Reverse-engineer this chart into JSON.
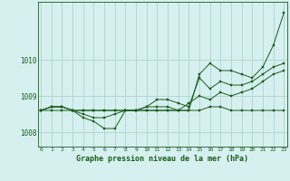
{
  "title": "Graphe pression niveau de la mer (hPa)",
  "bg_color": "#d6f0f0",
  "grid_color": "#aacccc",
  "line_color": "#1a5c1a",
  "xmin": -0.3,
  "xmax": 23.3,
  "ymin": 1007.6,
  "ymax": 1011.6,
  "yticks": [
    1008,
    1009,
    1010
  ],
  "xticks": [
    0,
    1,
    2,
    3,
    4,
    5,
    6,
    7,
    8,
    9,
    10,
    11,
    12,
    13,
    14,
    15,
    16,
    17,
    18,
    19,
    20,
    21,
    22,
    23
  ],
  "series": [
    [
      1008.6,
      1008.6,
      1008.6,
      1008.6,
      1008.6,
      1008.6,
      1008.6,
      1008.6,
      1008.6,
      1008.6,
      1008.6,
      1008.6,
      1008.6,
      1008.6,
      1008.6,
      1008.6,
      1008.7,
      1008.7,
      1008.6,
      1008.6,
      1008.6,
      1008.6,
      1008.6,
      1008.6
    ],
    [
      1008.6,
      1008.7,
      1008.7,
      1008.6,
      1008.4,
      1008.3,
      1008.1,
      1008.1,
      1008.6,
      1008.6,
      1008.7,
      1008.7,
      1008.7,
      1008.6,
      1008.8,
      1009.0,
      1008.9,
      1009.1,
      1009.0,
      1009.1,
      1009.2,
      1009.4,
      1009.6,
      1009.7
    ],
    [
      1008.6,
      1008.7,
      1008.7,
      1008.6,
      1008.5,
      1008.4,
      1008.4,
      1008.5,
      1008.6,
      1008.6,
      1008.7,
      1008.9,
      1008.9,
      1008.8,
      1008.7,
      1009.5,
      1009.2,
      1009.4,
      1009.3,
      1009.3,
      1009.4,
      1009.6,
      1009.8,
      1009.9
    ],
    [
      1008.6,
      1008.7,
      1008.7,
      1008.6,
      1008.6,
      1008.6,
      1008.6,
      1008.6,
      1008.6,
      1008.6,
      1008.6,
      1008.6,
      1008.6,
      1008.6,
      1008.6,
      1009.6,
      1009.9,
      1009.7,
      1009.7,
      1009.6,
      1009.5,
      1009.8,
      1010.4,
      1011.3
    ]
  ]
}
